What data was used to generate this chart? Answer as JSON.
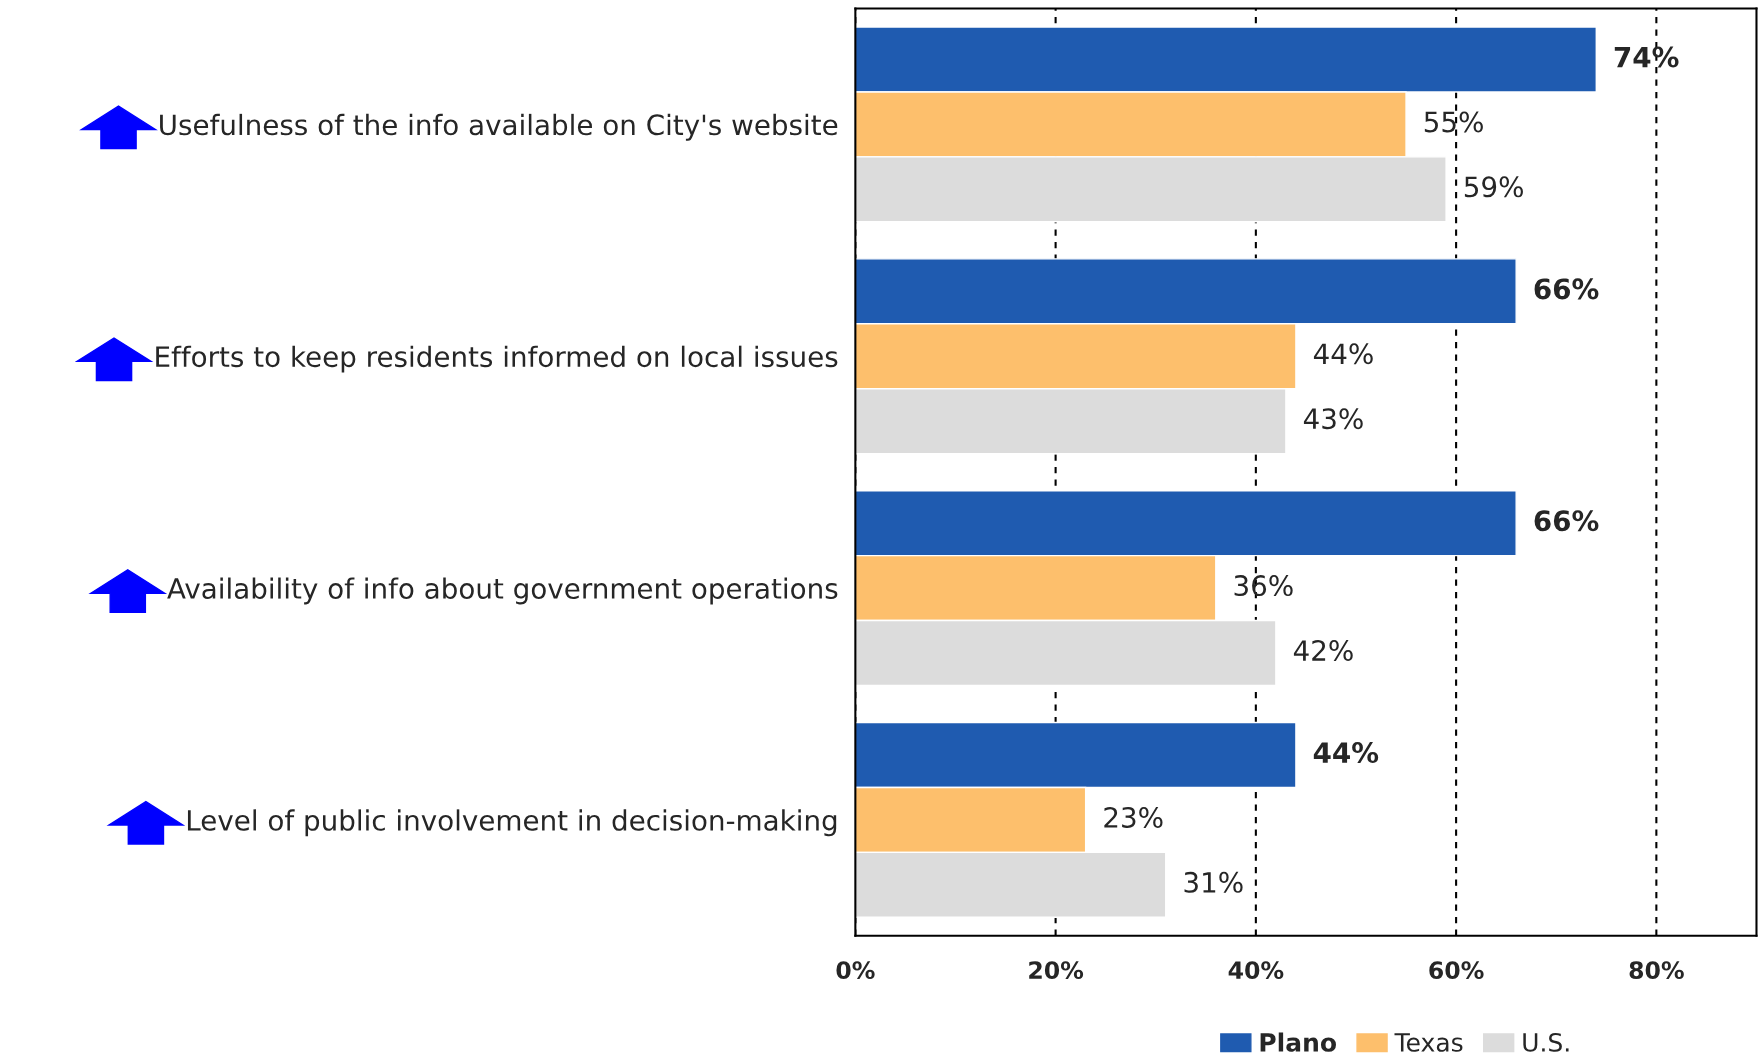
{
  "chart_data": {
    "type": "bar",
    "orientation": "horizontal",
    "categories": [
      "Usefulness of the info available on City's website",
      "Efforts to keep residents informed on local issues",
      "Availability of info about government operations",
      "Level of public involvement in decision-making"
    ],
    "series": [
      {
        "name": "Plano",
        "color": "#1f5bb0",
        "values": [
          74,
          66,
          66,
          44
        ],
        "value_labels": [
          "74%",
          "66%",
          "66%",
          "44%"
        ]
      },
      {
        "name": "Texas",
        "color": "#fdbf6c",
        "values": [
          55,
          44,
          36,
          23
        ],
        "value_labels": [
          "55%",
          "44%",
          "36%",
          "23%"
        ]
      },
      {
        "name": "U.S.",
        "color": "#dcdcdc",
        "values": [
          59,
          43,
          42,
          31
        ],
        "value_labels": [
          "59%",
          "43%",
          "42%",
          "31%"
        ]
      }
    ],
    "xlim": [
      0,
      90
    ],
    "xticks": [
      {
        "value": 0,
        "label": "0%"
      },
      {
        "value": 20,
        "label": "20%"
      },
      {
        "value": 40,
        "label": "40%"
      },
      {
        "value": 60,
        "label": "60%"
      },
      {
        "value": 80,
        "label": "80%"
      }
    ],
    "grid": "x",
    "legend": "bottom"
  }
}
